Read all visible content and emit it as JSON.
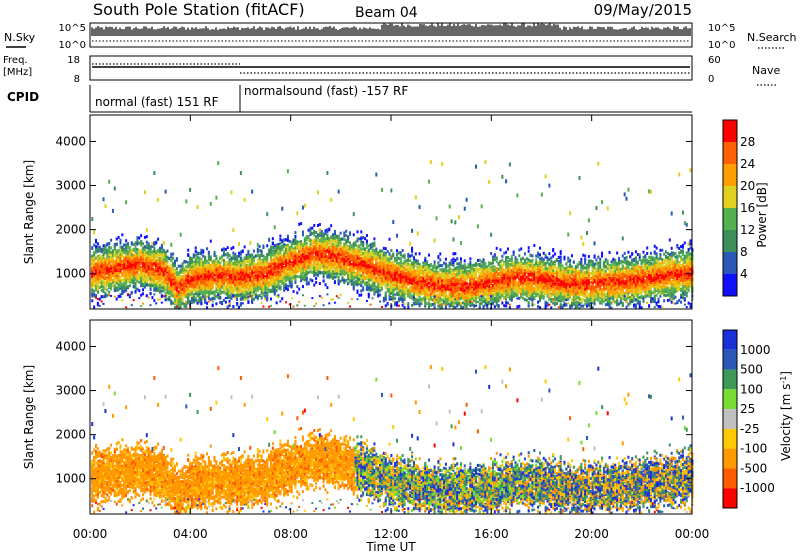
{
  "header": {
    "station": "South Pole Station (fitACF)",
    "beam": "Beam 04",
    "date": "09/May/2015"
  },
  "top_panels": {
    "nsky_label": "N.Sky",
    "nsky_tick_top": "10^5",
    "nsky_tick_bottom": "10^0",
    "nsearch_label": "N.Search",
    "nsearch_tick_top": "10^5",
    "nsearch_tick_bottom": "10^0",
    "freq_label_1": "Freq.",
    "freq_label_2": "[MHz]",
    "freq_tick_top": "18",
    "freq_tick_bottom": "8",
    "nave_label": "Nave",
    "nave_tick_top": "60",
    "nave_tick_bottom": "0",
    "cpid_label": "CPID",
    "cpid_segments": [
      {
        "label": "normal (fast) 151 RF",
        "start_h": 0,
        "end_h": 6
      },
      {
        "label": "normalsound (fast) -157 RF",
        "start_h": 6,
        "end_h": 24
      }
    ]
  },
  "colors": {
    "power": [
      "#1010ff",
      "#2a58b8",
      "#3f8f5a",
      "#55b050",
      "#e0d020",
      "#ffa000",
      "#ff6000",
      "#ff0000"
    ],
    "velocity": [
      "#ff0000",
      "#ff5a00",
      "#ff9a00",
      "#ffc800",
      "#c0c0c0",
      "#77dd33",
      "#3f9a5a",
      "#2a58b8",
      "#1a30d8"
    ]
  },
  "chart_data": [
    {
      "type": "heatmap",
      "name": "power-panel",
      "xlabel": "",
      "ylabel": "Slant Range [km]",
      "xlim": [
        0,
        24
      ],
      "ylim": [
        200,
        4600
      ],
      "x_ticks": [
        0,
        4,
        8,
        12,
        16,
        20,
        24
      ],
      "y_ticks": [
        1000,
        2000,
        3000,
        4000
      ],
      "colorbar": {
        "label": "Power [dB]",
        "range": [
          0,
          32
        ],
        "tick_values": [
          4,
          8,
          12,
          16,
          20,
          24,
          28
        ],
        "tick_labels": [
          "4",
          "8",
          "12",
          "16",
          "20",
          "24",
          "28"
        ]
      },
      "scatter_band": [
        {
          "t": 0.0,
          "r": 1050
        },
        {
          "t": 1.0,
          "r": 1150
        },
        {
          "t": 2.0,
          "r": 1250
        },
        {
          "t": 2.9,
          "r": 1100
        },
        {
          "t": 3.5,
          "r": 700
        },
        {
          "t": 4.0,
          "r": 900
        },
        {
          "t": 5.0,
          "r": 1000
        },
        {
          "t": 6.0,
          "r": 950
        },
        {
          "t": 7.0,
          "r": 1050
        },
        {
          "t": 8.0,
          "r": 1300
        },
        {
          "t": 9.0,
          "r": 1500
        },
        {
          "t": 10.0,
          "r": 1400
        },
        {
          "t": 11.0,
          "r": 1200
        },
        {
          "t": 12.0,
          "r": 1000
        },
        {
          "t": 13.0,
          "r": 850
        },
        {
          "t": 14.0,
          "r": 750
        },
        {
          "t": 15.0,
          "r": 750
        },
        {
          "t": 16.0,
          "r": 850
        },
        {
          "t": 17.0,
          "r": 950
        },
        {
          "t": 18.0,
          "r": 900
        },
        {
          "t": 19.0,
          "r": 800
        },
        {
          "t": 20.0,
          "r": 800
        },
        {
          "t": 21.0,
          "r": 850
        },
        {
          "t": 22.0,
          "r": 900
        },
        {
          "t": 23.0,
          "r": 1000
        },
        {
          "t": 24.0,
          "r": 1050
        }
      ]
    },
    {
      "type": "heatmap",
      "name": "velocity-panel",
      "xlabel": "Time UT",
      "ylabel": "Slant Range [km]",
      "xlim": [
        0,
        24
      ],
      "ylim": [
        200,
        4600
      ],
      "x_ticks": [
        0,
        4,
        8,
        12,
        16,
        20,
        24
      ],
      "x_tick_labels": [
        "00:00",
        "04:00",
        "08:00",
        "12:00",
        "16:00",
        "20:00",
        "00:00"
      ],
      "y_ticks": [
        1000,
        2000,
        3000,
        4000
      ],
      "colorbar": {
        "label": "Velocity [m s^-1]",
        "tick_labels": [
          "1000",
          "500",
          "100",
          "25",
          "-25",
          "-100",
          "-500",
          "-1000"
        ]
      }
    }
  ]
}
